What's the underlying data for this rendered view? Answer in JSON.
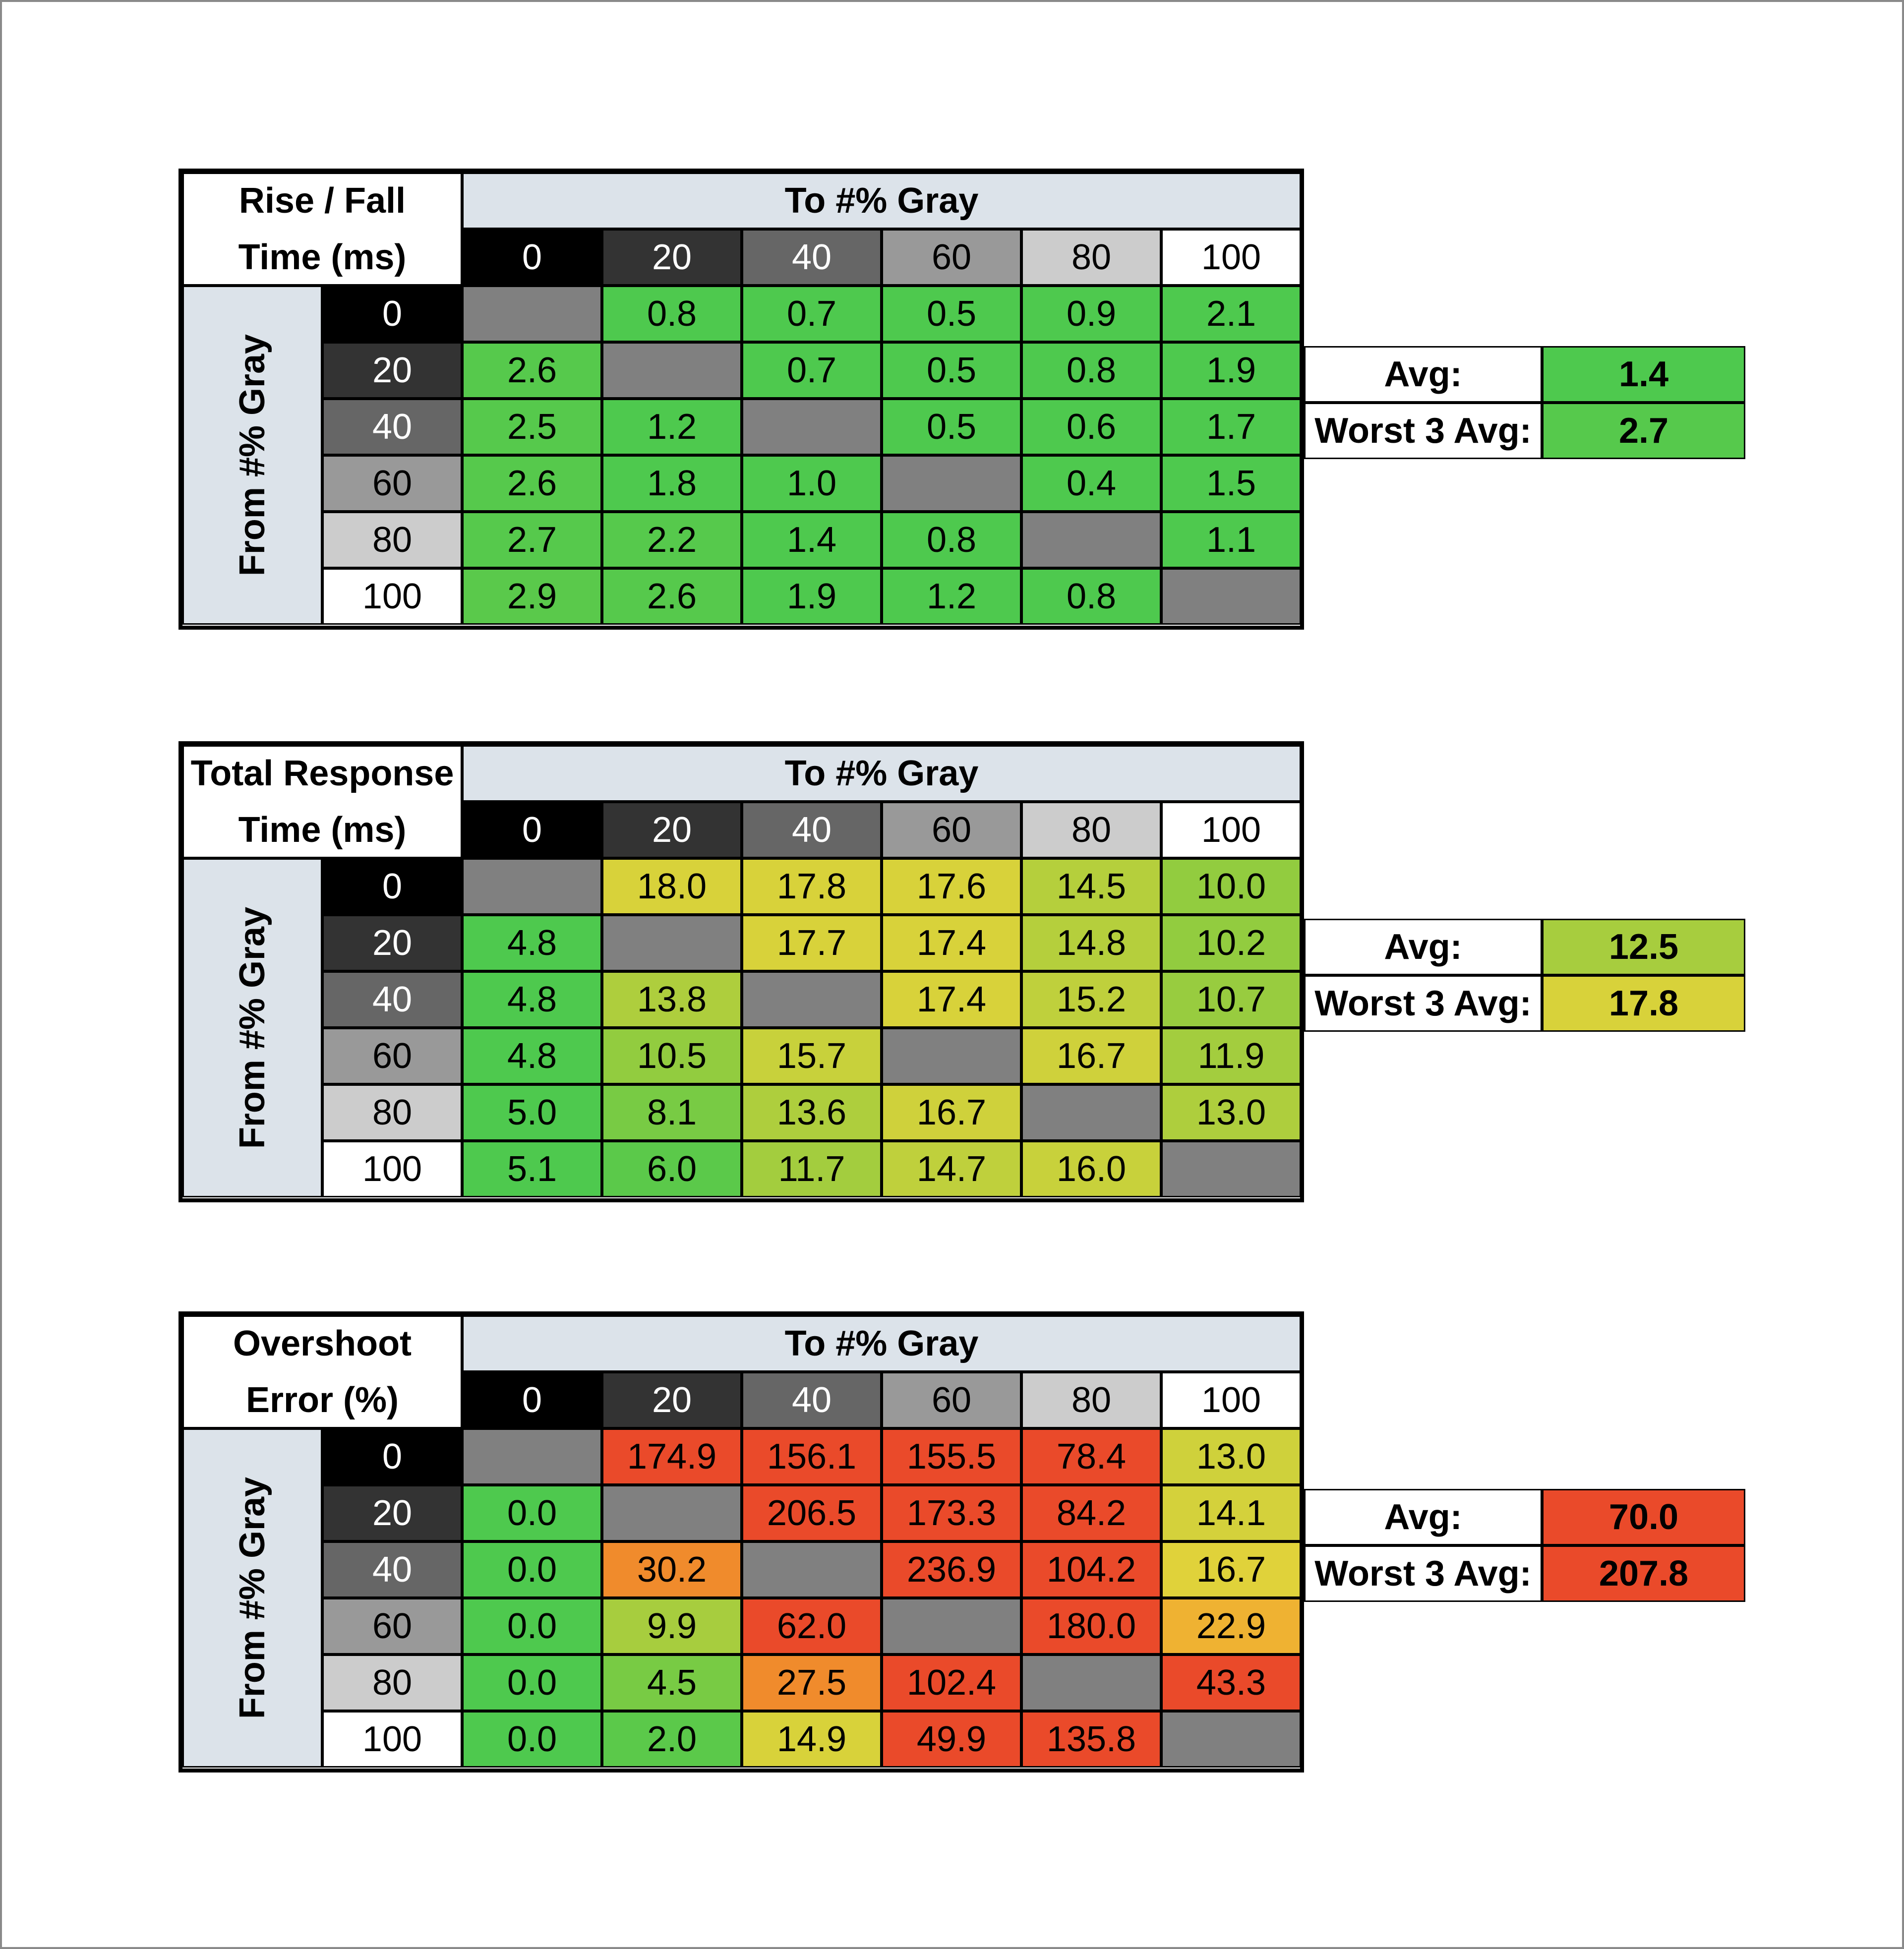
{
  "chart_data": [
    {
      "type": "table",
      "title_lines": [
        "Rise / Fall",
        "Time (ms)"
      ],
      "column_header": "To #% Gray",
      "row_header": "From #% Gray",
      "columns": [
        "0",
        "20",
        "40",
        "60",
        "80",
        "100"
      ],
      "rows": [
        "0",
        "20",
        "40",
        "60",
        "80",
        "100"
      ],
      "values": [
        [
          null,
          "0.8",
          "0.7",
          "0.5",
          "0.9",
          "2.1"
        ],
        [
          "2.6",
          null,
          "0.7",
          "0.5",
          "0.8",
          "1.9"
        ],
        [
          "2.5",
          "1.2",
          null,
          "0.5",
          "0.6",
          "1.7"
        ],
        [
          "2.6",
          "1.8",
          "1.0",
          null,
          "0.4",
          "1.5"
        ],
        [
          "2.7",
          "2.2",
          "1.4",
          "0.8",
          null,
          "1.1"
        ],
        [
          "2.9",
          "2.6",
          "1.9",
          "1.2",
          "0.8",
          null
        ]
      ],
      "colors": [
        [
          "#808080",
          "#4ec94e",
          "#4ec94e",
          "#4ec94e",
          "#4ec94e",
          "#4ec94e"
        ],
        [
          "#56c94c",
          "#808080",
          "#4ec94e",
          "#4ec94e",
          "#4ec94e",
          "#4ec94e"
        ],
        [
          "#56c94c",
          "#4ec94e",
          "#808080",
          "#4ec94e",
          "#4ec94e",
          "#4ec94e"
        ],
        [
          "#56c94c",
          "#4ec94e",
          "#4ec94e",
          "#808080",
          "#4ec94e",
          "#4ec94e"
        ],
        [
          "#56c94c",
          "#56c94c",
          "#4ec94e",
          "#4ec94e",
          "#808080",
          "#4ec94e"
        ],
        [
          "#5ac94b",
          "#56c94c",
          "#4ec94e",
          "#4ec94e",
          "#4ec94e",
          "#808080"
        ]
      ],
      "summary": {
        "avg_label": "Avg:",
        "avg_value": "1.4",
        "avg_color": "#4ec94e",
        "worst_label": "Worst 3 Avg:",
        "worst_value": "2.7",
        "worst_color": "#56c94c"
      }
    },
    {
      "type": "table",
      "title_lines": [
        "Total Response",
        "Time (ms)"
      ],
      "column_header": "To #% Gray",
      "row_header": "From #% Gray",
      "columns": [
        "0",
        "20",
        "40",
        "60",
        "80",
        "100"
      ],
      "rows": [
        "0",
        "20",
        "40",
        "60",
        "80",
        "100"
      ],
      "values": [
        [
          null,
          "18.0",
          "17.8",
          "17.6",
          "14.5",
          "10.0"
        ],
        [
          "4.8",
          null,
          "17.7",
          "17.4",
          "14.8",
          "10.2"
        ],
        [
          "4.8",
          "13.8",
          null,
          "17.4",
          "15.2",
          "10.7"
        ],
        [
          "4.8",
          "10.5",
          "15.7",
          null,
          "16.7",
          "11.9"
        ],
        [
          "5.0",
          "8.1",
          "13.6",
          "16.7",
          null,
          "13.0"
        ],
        [
          "5.1",
          "6.0",
          "11.7",
          "14.7",
          "16.0",
          null
        ]
      ],
      "colors": [
        [
          "#808080",
          "#d8d23a",
          "#d8d23a",
          "#d8d23a",
          "#b5cf3c",
          "#92cc3f"
        ],
        [
          "#4ec94e",
          "#808080",
          "#d8d23a",
          "#d8d23a",
          "#b5cf3c",
          "#92cc3f"
        ],
        [
          "#4ec94e",
          "#aece3d",
          "#808080",
          "#d8d23a",
          "#bfd03c",
          "#98cc3f"
        ],
        [
          "#4ec94e",
          "#92cc3f",
          "#c8d13b",
          "#808080",
          "#cfd13b",
          "#a3cd3e"
        ],
        [
          "#4ec94e",
          "#78cb44",
          "#aece3d",
          "#cfd13b",
          "#808080",
          "#aece3d"
        ],
        [
          "#4ec94e",
          "#5bc94a",
          "#a3cd3e",
          "#bfd03c",
          "#c8d13b",
          "#808080"
        ]
      ],
      "summary": {
        "avg_label": "Avg:",
        "avg_value": "12.5",
        "avg_color": "#a7cd3e",
        "worst_label": "Worst 3 Avg:",
        "worst_value": "17.8",
        "worst_color": "#d8d23a"
      }
    },
    {
      "type": "table",
      "title_lines": [
        "Overshoot",
        "Error (%)"
      ],
      "column_header": "To #% Gray",
      "row_header": "From #% Gray",
      "columns": [
        "0",
        "20",
        "40",
        "60",
        "80",
        "100"
      ],
      "rows": [
        "0",
        "20",
        "40",
        "60",
        "80",
        "100"
      ],
      "values": [
        [
          null,
          "174.9",
          "156.1",
          "155.5",
          "78.4",
          "13.0"
        ],
        [
          "0.0",
          null,
          "206.5",
          "173.3",
          "84.2",
          "14.1"
        ],
        [
          "0.0",
          "30.2",
          null,
          "236.9",
          "104.2",
          "16.7"
        ],
        [
          "0.0",
          "9.9",
          "62.0",
          null,
          "180.0",
          "22.9"
        ],
        [
          "0.0",
          "4.5",
          "27.5",
          "102.4",
          null,
          "43.3"
        ],
        [
          "0.0",
          "2.0",
          "14.9",
          "49.9",
          "135.8",
          null
        ]
      ],
      "colors": [
        [
          "#808080",
          "#ea4a2a",
          "#ea4a2a",
          "#ea4a2a",
          "#ea4a2a",
          "#cfd13b"
        ],
        [
          "#4ec94e",
          "#808080",
          "#ea4a2a",
          "#ea4a2a",
          "#ea4a2a",
          "#d4d13b"
        ],
        [
          "#4ec94e",
          "#f08b2c",
          "#808080",
          "#ea4a2a",
          "#ea4a2a",
          "#e0d23a"
        ],
        [
          "#4ec94e",
          "#a7cd3e",
          "#ea4a2a",
          "#808080",
          "#ea4a2a",
          "#efb232"
        ],
        [
          "#4ec94e",
          "#78cb44",
          "#f08b2c",
          "#ea4a2a",
          "#808080",
          "#ea4a2a"
        ],
        [
          "#4ec94e",
          "#5bc94a",
          "#d8d23a",
          "#ea4a2a",
          "#ea4a2a",
          "#808080"
        ]
      ],
      "summary": {
        "avg_label": "Avg:",
        "avg_value": "70.0",
        "avg_color": "#ea4a2a",
        "worst_label": "Worst 3 Avg:",
        "worst_value": "207.8",
        "worst_color": "#ea4a2a"
      }
    }
  ],
  "shade_colors": {
    "0": "#000000",
    "20": "#333333",
    "40": "#666666",
    "60": "#999999",
    "80": "#cccccc",
    "100": "#ffffff"
  }
}
